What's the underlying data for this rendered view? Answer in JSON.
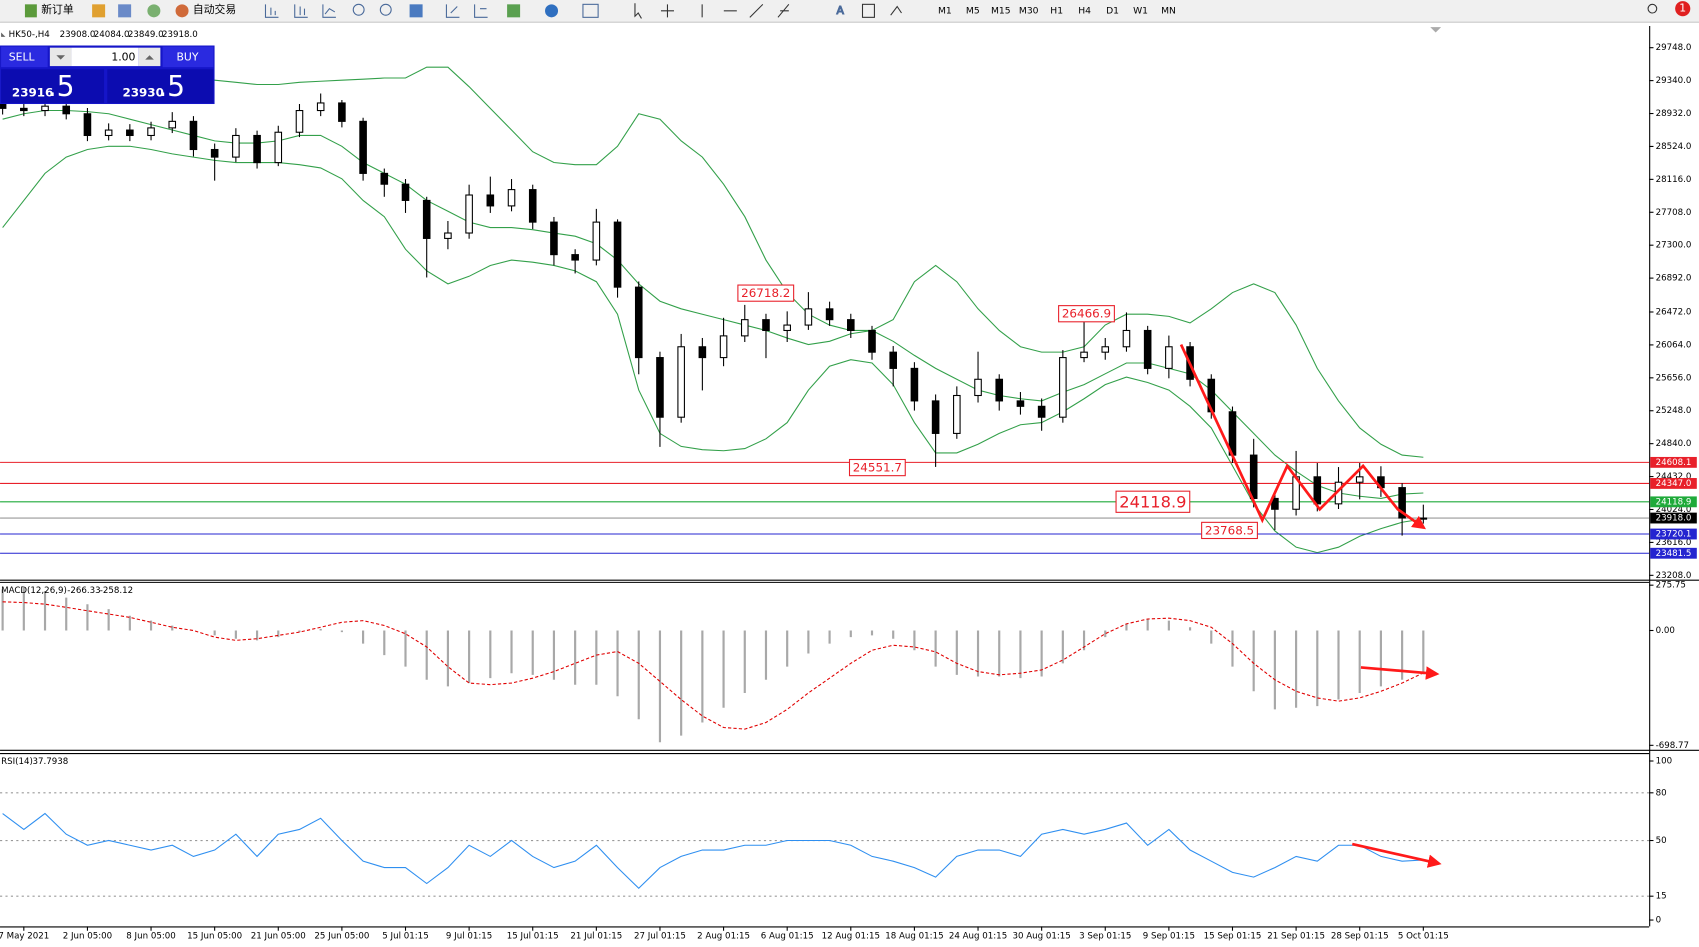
{
  "toolbar": {
    "new_order": "新订单",
    "auto_trading": "自动交易",
    "timeframes": [
      "M1",
      "M5",
      "M15",
      "M30",
      "H1",
      "H4",
      "D1",
      "W1",
      "MN"
    ],
    "notifications": "1"
  },
  "chart_header": {
    "symbol": "HK50-,H4",
    "ohlc": [
      "23908.0",
      "24084.0",
      "23849.0",
      "23918.0"
    ]
  },
  "trade_panel": {
    "sell": "SELL",
    "buy": "BUY",
    "volume": "1.00",
    "sell_price": {
      "main": "23916",
      "pip": ".5"
    },
    "buy_price": {
      "main": "23930",
      "pip": ".5"
    }
  },
  "chart_data": [
    {
      "type": "candlestick",
      "categories": [
        null,
        "7 May 2021",
        null,
        null,
        "2 Jun 05:00",
        null,
        null,
        "8 Jun 05:00",
        null,
        null,
        "15 Jun 05:00",
        null,
        null,
        "21 Jun 05:00",
        null,
        null,
        "25 Jun 05:00",
        null,
        null,
        "5 Jul 01:15",
        null,
        null,
        "9 Jul 01:15",
        null,
        null,
        "15 Jul 01:15",
        null,
        null,
        "21 Jul 01:15",
        null,
        null,
        "27 Jul 01:15",
        null,
        null,
        "2 Aug 01:15",
        null,
        null,
        "6 Aug 01:15",
        null,
        null,
        "12 Aug 01:15",
        null,
        null,
        "18 Aug 01:15",
        null,
        null,
        "24 Aug 01:15",
        null,
        null,
        "30 Aug 01:15",
        null,
        null,
        "3 Sep 01:15",
        null,
        null,
        "9 Sep 01:15",
        null,
        null,
        "15 Sep 01:15",
        null,
        null,
        "21 Sep 01:15",
        null,
        null,
        "28 Sep 01:15",
        null,
        null,
        "5 Oct 01:15"
      ],
      "open": [
        29050,
        28996,
        28969,
        29023,
        28929,
        28660,
        28727,
        28660,
        28754,
        28835,
        28486,
        28392,
        28660,
        28324,
        28700,
        28969,
        29063,
        28835,
        28190,
        28056,
        27855,
        27384,
        27451,
        27922,
        27787,
        27989,
        27586,
        27183,
        27116,
        27586,
        26780,
        25907,
        25168,
        26041,
        25907,
        26176,
        26377,
        26243,
        26310,
        26511,
        26377,
        26243,
        25974,
        25773,
        25370,
        24967,
        25437,
        25638,
        25370,
        25303,
        25168,
        25907,
        25974,
        26041,
        26243,
        25773,
        26041,
        25638,
        25235,
        24698,
        24161,
        24027,
        24429,
        24094,
        24362,
        24429,
        24295,
        23908
      ],
      "high": [
        29120,
        29060,
        29100,
        29090,
        29000,
        28810,
        28800,
        28830,
        28950,
        28900,
        28560,
        28750,
        28720,
        28780,
        29050,
        29180,
        29100,
        28880,
        28250,
        28120,
        27900,
        27600,
        28050,
        28150,
        28120,
        28050,
        27650,
        27250,
        27750,
        27620,
        26850,
        25980,
        26200,
        26150,
        26400,
        26560,
        26450,
        26480,
        26718.2,
        26600,
        26450,
        26300,
        26050,
        25850,
        25450,
        25550,
        25980,
        25700,
        25480,
        25400,
        26000,
        26350,
        26150,
        26466.9,
        26300,
        26180,
        26100,
        25700,
        25300,
        24900,
        24250,
        24750,
        24600,
        24550,
        24600,
        24560,
        24350,
        24084
      ],
      "low": [
        28920,
        28900,
        28900,
        28860,
        28590,
        28600,
        28590,
        28600,
        28690,
        28400,
        28100,
        28330,
        28250,
        28280,
        28640,
        28900,
        28760,
        28100,
        27900,
        27700,
        26900,
        27250,
        27380,
        27700,
        27720,
        27500,
        27050,
        26950,
        27050,
        26650,
        25700,
        24800,
        25100,
        25500,
        25800,
        26100,
        25900,
        26100,
        26250,
        26300,
        26150,
        25880,
        25550,
        25250,
        24551.7,
        24900,
        25350,
        25250,
        25200,
        25000,
        25100,
        25850,
        25880,
        25980,
        25700,
        25650,
        25550,
        25150,
        24600,
        24050,
        23768.5,
        23950,
        24000,
        24030,
        24150,
        24180,
        23700,
        23849
      ],
      "close": [
        28996,
        28969,
        29023,
        28929,
        28660,
        28727,
        28660,
        28754,
        28835,
        28486,
        28392,
        28660,
        28324,
        28700,
        28969,
        29063,
        28835,
        28190,
        28056,
        27855,
        27384,
        27451,
        27922,
        27787,
        27989,
        27586,
        27183,
        27116,
        27586,
        26780,
        25907,
        25168,
        26041,
        25907,
        26176,
        26377,
        26243,
        26310,
        26511,
        26377,
        26243,
        25974,
        25773,
        25370,
        24967,
        25437,
        25638,
        25370,
        25303,
        25168,
        25907,
        25974,
        26041,
        26243,
        25773,
        26041,
        25638,
        25235,
        24698,
        24161,
        24027,
        24429,
        24094,
        24362,
        24429,
        24295,
        23919,
        23918
      ],
      "bands": {
        "color": "#33a04a",
        "upper": [
          29063,
          29130,
          29197,
          29238,
          29265,
          29291,
          29318,
          29345,
          29372,
          29372,
          29345,
          29318,
          29291,
          29291,
          29318,
          29332,
          29345,
          29358,
          29372,
          29372,
          29506,
          29506,
          29265,
          28996,
          28727,
          28459,
          28324,
          28298,
          28298,
          28526,
          28929,
          28862,
          28593,
          28392,
          28056,
          27653,
          27116,
          26713,
          26444,
          26310,
          26243,
          26243,
          26377,
          26847,
          27049,
          26847,
          26511,
          26243,
          26041,
          25974,
          25974,
          26041,
          26310,
          26444,
          26444,
          26417,
          26337,
          26511,
          26713,
          26820,
          26713,
          26310,
          25773,
          25370,
          25034,
          24833,
          24698,
          24671
        ],
        "middle": [
          28862,
          28929,
          28969,
          28969,
          28956,
          28929,
          28862,
          28795,
          28727,
          28660,
          28593,
          28566,
          28566,
          28593,
          28660,
          28660,
          28526,
          28324,
          28190,
          28056,
          27855,
          27720,
          27586,
          27519,
          27519,
          27492,
          27451,
          27411,
          27317,
          27116,
          26820,
          26606,
          26511,
          26444,
          26377,
          26310,
          26243,
          26149,
          26069,
          26109,
          26203,
          26243,
          26109,
          25934,
          25773,
          25638,
          25504,
          25437,
          25397,
          25370,
          25477,
          25571,
          25706,
          25840,
          25840,
          25773,
          25706,
          25504,
          25235,
          24967,
          24698,
          24497,
          24322,
          24228,
          24188,
          24161,
          24215,
          24228
        ],
        "lower": [
          27519,
          27855,
          28190,
          28392,
          28486,
          28526,
          28526,
          28486,
          28432,
          28392,
          28351,
          28324,
          28324,
          28324,
          28298,
          28257,
          28123,
          27855,
          27653,
          27250,
          26982,
          26820,
          26914,
          27049,
          27116,
          27089,
          27049,
          26982,
          26847,
          26444,
          25504,
          24967,
          24806,
          24765,
          24752,
          24779,
          24900,
          25101,
          25504,
          25800,
          25880,
          25840,
          25571,
          25101,
          24725,
          24725,
          24833,
          24967,
          25074,
          25101,
          25235,
          25397,
          25571,
          25665,
          25598,
          25504,
          25303,
          25034,
          24564,
          24094,
          23758,
          23557,
          23490,
          23557,
          23692,
          23786,
          23866,
          23907
        ]
      },
      "ylim": [
        23154,
        29990
      ],
      "yticks": [
        {
          "value": 29748,
          "label": "29748.0"
        },
        {
          "value": 29340,
          "label": "29340.0"
        },
        {
          "value": 28932,
          "label": "28932.0"
        },
        {
          "value": 28524,
          "label": "28524.0"
        },
        {
          "value": 28116,
          "label": "28116.0"
        },
        {
          "value": 27708,
          "label": "27708.0"
        },
        {
          "value": 27300,
          "label": "27300.0"
        },
        {
          "value": 26892,
          "label": "26892.0"
        },
        {
          "value": 26472,
          "label": "26472.0"
        },
        {
          "value": 26064,
          "label": "26064.0"
        },
        {
          "value": 25656,
          "label": "25656.0"
        },
        {
          "value": 25248,
          "label": "25248.0"
        },
        {
          "value": 24840,
          "label": "24840.0"
        },
        {
          "value": 24432,
          "label": "24432.0"
        },
        {
          "value": 24024,
          "label": "24024.0"
        },
        {
          "value": 23616,
          "label": "23616.0"
        },
        {
          "value": 23208,
          "label": "23208.0"
        }
      ],
      "levels": [
        {
          "value": 24608.1,
          "color": "#e8202a"
        },
        {
          "value": 24347,
          "label": "24347.0",
          "color": "#e8202a"
        },
        {
          "value": 24118.9,
          "color": "#1faa3a"
        },
        {
          "value": 23918,
          "label": "23918.0",
          "color": "#000000"
        },
        {
          "value": 23720.1,
          "color": "#2424d0"
        },
        {
          "value": 23481.5,
          "color": "#2424d0"
        }
      ],
      "annotations": [
        "26718.2",
        "26466.9",
        "24551.7",
        "24118.9",
        "23768.5"
      ]
    },
    {
      "type": "macd",
      "label": "MACD(12,26,9)",
      "series": [
        {
          "style": "histogram",
          "color": "#a8a8a8",
          "values": [
            250,
            260,
            240,
            200,
            160,
            130,
            90,
            60,
            30,
            0,
            -30,
            -50,
            -60,
            -40,
            -10,
            10,
            -10,
            -80,
            -150,
            -220,
            -300,
            -340,
            -320,
            -290,
            -260,
            -270,
            -300,
            -330,
            -330,
            -400,
            -540,
            -680,
            -640,
            -560,
            -470,
            -380,
            -300,
            -220,
            -140,
            -80,
            -40,
            -30,
            -50,
            -120,
            -220,
            -270,
            -280,
            -280,
            -290,
            -280,
            -200,
            -120,
            -40,
            40,
            70,
            60,
            20,
            -80,
            -220,
            -370,
            -480,
            -470,
            -460,
            -420,
            -380,
            -340,
            -300,
            -266.33
          ]
        },
        {
          "style": "dashed",
          "color": "#e00000",
          "values": [
            175,
            170,
            160,
            141,
            120,
            100,
            80,
            50,
            20,
            0,
            -40,
            -60,
            -50,
            -30,
            -10,
            20,
            50,
            60,
            30,
            -20,
            -100,
            -220,
            -320,
            -330,
            -320,
            -290,
            -250,
            -200,
            -150,
            -128,
            -200,
            -310,
            -420,
            -520,
            -590,
            -600,
            -560,
            -480,
            -380,
            -290,
            -200,
            -120,
            -90,
            -100,
            -130,
            -200,
            -250,
            -270,
            -260,
            -240,
            -180,
            -100,
            -20,
            40,
            70,
            75,
            60,
            20,
            -80,
            -200,
            -300,
            -370,
            -410,
            -430,
            -410,
            -370,
            -320,
            -258.12
          ]
        }
      ],
      "ylim": [
        -726,
        296
      ],
      "yticks": [
        275.75,
        {
          "value": 0,
          "label": "0.00"
        },
        -698.77
      ]
    },
    {
      "type": "line",
      "label": "RSI(14)",
      "series": [
        {
          "color": "#2f8ff0",
          "values": [
            67,
            57,
            67,
            54,
            47,
            50,
            47,
            44,
            47,
            40,
            44,
            54,
            40,
            54,
            57,
            64,
            50,
            37,
            33,
            33,
            23,
            33,
            47,
            40,
            50,
            40,
            33,
            37,
            47,
            33,
            20,
            33,
            40,
            44,
            44,
            47,
            47,
            50,
            50,
            50,
            47,
            40,
            37,
            33,
            27,
            40,
            44,
            44,
            40,
            54,
            57,
            54,
            57,
            61,
            47,
            57,
            44,
            37,
            30,
            27,
            33,
            40,
            37,
            47,
            47,
            40,
            37,
            37.7938
          ]
        }
      ],
      "ylim": [
        -4,
        105
      ],
      "yticks": [
        100,
        80,
        50,
        15,
        0
      ],
      "levels": [
        80,
        50,
        15
      ]
    }
  ]
}
